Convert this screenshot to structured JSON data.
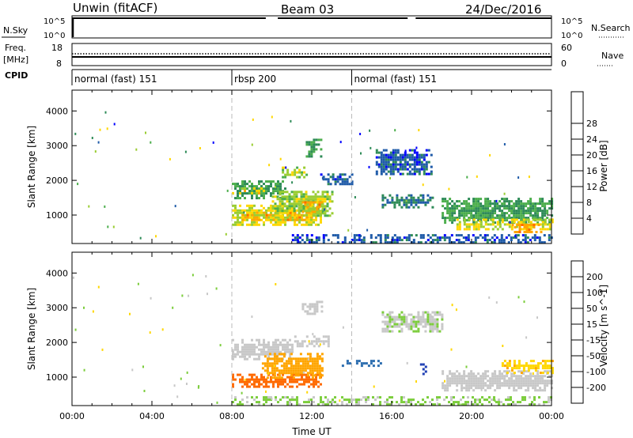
{
  "header": {
    "station": "Unwin (fitACF)",
    "beam": "Beam 03",
    "date": "24/Dec/2016"
  },
  "panels": {
    "nsky": {
      "left_label": "N.Sky",
      "tick_top": "10^5",
      "tick_bottom": "10^0",
      "right_label": "N.Search"
    },
    "freq": {
      "left_label": "Freq.",
      "unit": "[MHz]",
      "ticks_left": [
        "18",
        "8"
      ],
      "ticks_right": [
        "60",
        "0"
      ],
      "right_label": "Nave"
    },
    "cpid": {
      "left_label": "CPID",
      "modes": [
        {
          "start": 0,
          "end": 8,
          "label": "normal (fast) 151"
        },
        {
          "start": 8,
          "end": 14,
          "label": "rbsp 200"
        },
        {
          "start": 14,
          "end": 24,
          "label": "normal (fast) 151"
        }
      ]
    }
  },
  "chart_data": [
    {
      "type": "heatmap",
      "ylabel": "Slant Range [km]",
      "ylim": [
        180,
        4600
      ],
      "yticks": [
        1000,
        2000,
        3000,
        4000
      ],
      "xlim": [
        0,
        24
      ],
      "colorbar": {
        "label": "Power [dB]",
        "ticks": [
          "4",
          "8",
          "12",
          "16",
          "20",
          "24",
          "28"
        ],
        "colors": [
          "#0000ff",
          "#1e5aa8",
          "#2e8b57",
          "#4cae4c",
          "#9acd32",
          "#ffd700",
          "#ffa500",
          "#ff6a00",
          "#ff0000"
        ]
      },
      "regions": [
        {
          "t0": 8.0,
          "t1": 10.7,
          "r0": 1500,
          "r1": 2000,
          "v": 12
        },
        {
          "t0": 8.0,
          "t1": 9.6,
          "r0": 1600,
          "r1": 1800,
          "v": 22
        },
        {
          "t0": 8.0,
          "t1": 12.5,
          "r0": 700,
          "r1": 1300,
          "v": 20
        },
        {
          "t0": 8.5,
          "t1": 12.0,
          "r0": 850,
          "r1": 1100,
          "v": 26
        },
        {
          "t0": 10.0,
          "t1": 13.0,
          "r0": 1000,
          "r1": 1700,
          "v": 18
        },
        {
          "t0": 11.5,
          "t1": 12.5,
          "r0": 1100,
          "r1": 1400,
          "v": 26
        },
        {
          "t0": 10.5,
          "t1": 11.7,
          "r0": 2100,
          "r1": 2400,
          "v": 18
        },
        {
          "t0": 11.7,
          "t1": 12.5,
          "r0": 2700,
          "r1": 3200,
          "v": 12
        },
        {
          "t0": 12.3,
          "t1": 14.0,
          "r0": 1900,
          "r1": 2200,
          "v": 6
        },
        {
          "t0": 15.2,
          "t1": 18.0,
          "r0": 2200,
          "r1": 2900,
          "v": 6
        },
        {
          "t0": 15.5,
          "t1": 18.0,
          "r0": 1200,
          "r1": 1600,
          "v": 8
        },
        {
          "t0": 18.5,
          "t1": 24.0,
          "r0": 800,
          "r1": 1500,
          "v": 12
        },
        {
          "t0": 19.0,
          "t1": 24.0,
          "r0": 600,
          "r1": 900,
          "v": 20
        },
        {
          "t0": 22.0,
          "t1": 23.5,
          "r0": 500,
          "r1": 750,
          "v": 26
        },
        {
          "t0": 11.0,
          "t1": 24.0,
          "r0": 200,
          "r1": 450,
          "v": 6
        }
      ]
    },
    {
      "type": "heatmap",
      "ylabel": "Slant Range [km]",
      "ylim": [
        180,
        4600
      ],
      "yticks": [
        1000,
        2000,
        3000,
        4000
      ],
      "xlim": [
        0,
        24
      ],
      "xticks": [
        "00:00",
        "04:00",
        "08:00",
        "12:00",
        "16:00",
        "20:00",
        "00:00"
      ],
      "xlabel": "Time UT",
      "colorbar": {
        "label": "Velocity [m s^-1]",
        "ticks": [
          "200",
          "100",
          "50",
          "15",
          "-15",
          "-50",
          "-100",
          "-200"
        ],
        "colors": [
          "#1f3fb4",
          "#2e6fb0",
          "#2e8b57",
          "#7ccd3c",
          "#c8c8c8",
          "#ffd700",
          "#ffa500",
          "#ff6a00",
          "#ff0000"
        ]
      },
      "regions": [
        {
          "t0": 8.0,
          "t1": 11.0,
          "r0": 1500,
          "r1": 2100,
          "v": 0
        },
        {
          "t0": 11.0,
          "t1": 13.0,
          "r0": 1900,
          "r1": 2200,
          "v": 0
        },
        {
          "t0": 8.0,
          "t1": 12.5,
          "r0": 700,
          "r1": 1100,
          "v": -120
        },
        {
          "t0": 9.5,
          "t1": 12.5,
          "r0": 1000,
          "r1": 1700,
          "v": -80
        },
        {
          "t0": 11.5,
          "t1": 12.5,
          "r0": 2800,
          "r1": 3200,
          "v": 0
        },
        {
          "t0": 13.5,
          "t1": 15.5,
          "r0": 1300,
          "r1": 1500,
          "v": 150
        },
        {
          "t0": 17.3,
          "t1": 17.7,
          "r0": 1100,
          "r1": 1400,
          "v": 250
        },
        {
          "t0": 15.5,
          "t1": 18.5,
          "r0": 2300,
          "r1": 2900,
          "v": 10
        },
        {
          "t0": 18.5,
          "t1": 24.0,
          "r0": 600,
          "r1": 1200,
          "v": 0
        },
        {
          "t0": 21.5,
          "t1": 24.0,
          "r0": 1100,
          "r1": 1500,
          "v": -40
        },
        {
          "t0": 8.0,
          "t1": 24.0,
          "r0": 200,
          "r1": 450,
          "v": 20
        }
      ]
    }
  ]
}
